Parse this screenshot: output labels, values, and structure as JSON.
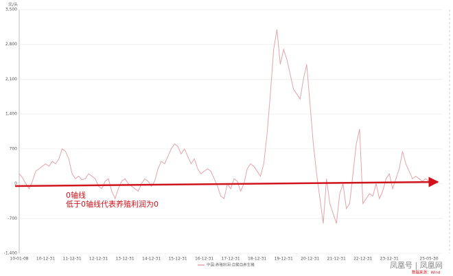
{
  "chart_data": {
    "type": "line",
    "y_unit": "元/头",
    "categories": [
      "10-01-08",
      null,
      null,
      null,
      null,
      null,
      null,
      null,
      "10-12-31",
      null,
      null,
      null,
      null,
      null,
      null,
      null,
      "11-12-31",
      null,
      null,
      null,
      null,
      null,
      null,
      null,
      "12-12-31",
      null,
      null,
      null,
      null,
      null,
      null,
      null,
      "13-12-31",
      null,
      null,
      null,
      null,
      null,
      null,
      null,
      "14-12-31",
      null,
      null,
      null,
      null,
      null,
      null,
      null,
      "15-12-31",
      null,
      null,
      null,
      null,
      null,
      null,
      null,
      "16-12-31",
      null,
      null,
      null,
      null,
      null,
      null,
      null,
      "17-12-31",
      null,
      null,
      null,
      null,
      null,
      null,
      null,
      "18-12-31",
      null,
      null,
      null,
      null,
      null,
      null,
      null,
      "19-12-31",
      null,
      null,
      null,
      null,
      null,
      null,
      null,
      "20-12-31",
      null,
      null,
      null,
      null,
      null,
      null,
      null,
      "21-12-31",
      null,
      null,
      null,
      null,
      null,
      null,
      null,
      "22-12-31",
      null,
      null,
      null,
      null,
      null,
      null,
      null,
      "23-12-31",
      null,
      null,
      null,
      null,
      null,
      null,
      null,
      null,
      null,
      null,
      null,
      "25-05-30"
    ],
    "series": [
      {
        "name": "中国:养殖利润:自繁自养生猪",
        "color": "#e2a3ab",
        "values": [
          200,
          120,
          0,
          -100,
          50,
          250,
          300,
          350,
          400,
          350,
          450,
          400,
          500,
          700,
          650,
          500,
          200,
          100,
          150,
          80,
          100,
          200,
          150,
          100,
          -50,
          -100,
          50,
          100,
          -150,
          -300,
          -100,
          50,
          100,
          0,
          -50,
          -100,
          -150,
          0,
          100,
          50,
          -50,
          50,
          300,
          450,
          400,
          550,
          700,
          800,
          750,
          600,
          700,
          550,
          400,
          500,
          300,
          200,
          250,
          300,
          250,
          100,
          -50,
          -250,
          -300,
          0,
          -100,
          100,
          50,
          -150,
          0,
          300,
          400,
          350,
          250,
          150,
          400,
          1000,
          1800,
          2700,
          3100,
          2400,
          2700,
          2500,
          2200,
          1900,
          1800,
          1700,
          2100,
          2400,
          1600,
          800,
          200,
          -300,
          -800,
          100,
          -400,
          -600,
          -800,
          -200,
          0,
          -500,
          -400,
          200,
          800,
          1100,
          -400,
          -300,
          -200,
          -250,
          0,
          -300,
          -150,
          100,
          200,
          -100,
          100,
          300,
          650,
          400,
          250,
          100,
          150,
          100,
          50,
          100,
          50
        ]
      }
    ],
    "ylim": [
      -1400,
      3500
    ],
    "yticks": [
      {
        "value": -1400,
        "label": "-1,400"
      },
      -700,
      0,
      700,
      {
        "value": 1400,
        "label": "1,400"
      },
      {
        "value": 2100,
        "label": "2,100"
      },
      {
        "value": 2800,
        "label": "2,800"
      },
      {
        "value": 3500,
        "label": "3,500"
      }
    ],
    "grid": true,
    "annotations": [
      "0轴线",
      "低于0轴线代表养殖利润为0"
    ],
    "source": "数据来源：Wind",
    "watermark": "凤凰号 | 凤凰网"
  }
}
